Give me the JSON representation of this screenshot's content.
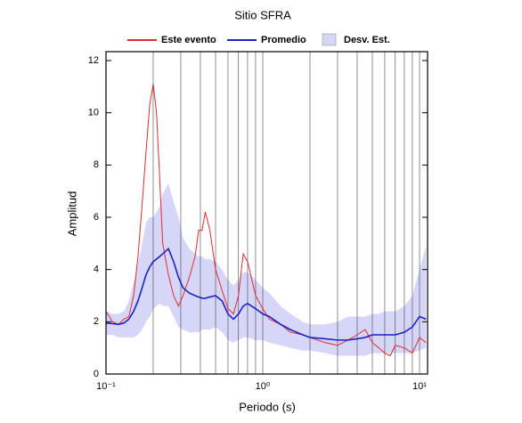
{
  "chart_data": {
    "type": "line",
    "title": "Sitio SFRA",
    "x_label": "Periodo (s)",
    "y_label": "Amplitud",
    "x_log": true,
    "x": [
      0.1,
      0.11,
      0.12,
      0.13,
      0.14,
      0.15,
      0.16,
      0.17,
      0.18,
      0.19,
      0.2,
      0.21,
      0.22,
      0.23,
      0.25,
      0.27,
      0.29,
      0.31,
      0.34,
      0.37,
      0.39,
      0.41,
      0.43,
      0.46,
      0.5,
      0.55,
      0.6,
      0.65,
      0.7,
      0.75,
      0.8,
      0.9,
      1.0,
      1.1,
      1.3,
      1.5,
      1.8,
      2,
      2.5,
      3,
      3.5,
      4,
      4.5,
      5,
      5.5,
      6,
      6.5,
      7,
      8,
      9,
      10,
      11
    ],
    "series": [
      {
        "name": "Este evento",
        "color": "#e8282c",
        "values": [
          2.4,
          2.0,
          1.9,
          2.1,
          2.2,
          3.0,
          4.5,
          6.5,
          8.5,
          10.3,
          11.1,
          10.0,
          7.5,
          5.0,
          3.8,
          3.0,
          2.6,
          3.0,
          3.7,
          4.5,
          5.5,
          5.5,
          6.2,
          5.5,
          4.0,
          3.2,
          2.5,
          2.3,
          3.0,
          4.6,
          4.3,
          3.0,
          2.5,
          2.1,
          1.9,
          1.6,
          1.5,
          1.4,
          1.2,
          1.1,
          1.3,
          1.5,
          1.7,
          1.2,
          1.0,
          0.8,
          0.7,
          1.1,
          1.0,
          0.8,
          1.4,
          1.2
        ]
      },
      {
        "name": "Promedio",
        "color": "#1a22c8",
        "values": [
          1.95,
          1.93,
          1.9,
          1.95,
          2.1,
          2.4,
          2.8,
          3.3,
          3.8,
          4.1,
          4.3,
          4.4,
          4.5,
          4.6,
          4.8,
          4.3,
          3.7,
          3.3,
          3.1,
          3.0,
          2.95,
          2.9,
          2.9,
          2.95,
          3.0,
          2.8,
          2.3,
          2.1,
          2.3,
          2.6,
          2.7,
          2.5,
          2.3,
          2.2,
          1.9,
          1.7,
          1.5,
          1.4,
          1.35,
          1.3,
          1.3,
          1.35,
          1.4,
          1.5,
          1.5,
          1.5,
          1.5,
          1.5,
          1.6,
          1.8,
          2.2,
          2.1
        ]
      },
      {
        "name": "Desv. Est.",
        "color": "#d6d6f8",
        "upper": [
          2.4,
          2.3,
          2.3,
          2.4,
          2.8,
          3.5,
          4.2,
          5.0,
          5.8,
          6.0,
          6.0,
          6.2,
          6.4,
          6.9,
          7.3,
          6.6,
          6.0,
          5.2,
          4.8,
          4.6,
          4.5,
          4.5,
          4.4,
          4.4,
          4.3,
          4.0,
          3.6,
          3.4,
          3.6,
          3.9,
          3.9,
          3.6,
          3.3,
          3.1,
          2.6,
          2.3,
          2.0,
          1.9,
          1.9,
          2.0,
          2.2,
          2.2,
          2.2,
          2.3,
          2.3,
          2.4,
          2.4,
          2.4,
          2.6,
          3.0,
          4.0,
          4.9
        ],
        "lower": [
          1.5,
          1.5,
          1.4,
          1.4,
          1.4,
          1.4,
          1.5,
          1.7,
          2.0,
          2.2,
          2.5,
          2.6,
          2.7,
          2.6,
          2.6,
          2.2,
          1.8,
          1.7,
          1.6,
          1.6,
          1.6,
          1.7,
          1.7,
          1.7,
          1.8,
          1.6,
          1.3,
          1.2,
          1.3,
          1.4,
          1.4,
          1.3,
          1.3,
          1.2,
          1.1,
          1.0,
          0.9,
          0.9,
          0.8,
          0.7,
          0.7,
          0.7,
          0.7,
          0.8,
          0.8,
          0.8,
          0.8,
          0.8,
          0.8,
          0.8,
          0.9,
          1.0
        ]
      }
    ],
    "xlim": [
      0.1,
      11.25
    ],
    "ylim": [
      0,
      12.34
    ],
    "xticks": [
      {
        "value": 0.1,
        "label": "10⁻¹"
      },
      {
        "value": 1,
        "label": "10⁰"
      },
      {
        "value": 10,
        "label": "10¹"
      }
    ],
    "xgrid": [
      0.2,
      0.3,
      0.4,
      0.5,
      0.6,
      0.7,
      0.8,
      0.9,
      2,
      3,
      4,
      5,
      6,
      7,
      8,
      9
    ],
    "yticks": [
      0,
      2,
      4,
      6,
      8,
      10,
      12
    ]
  }
}
